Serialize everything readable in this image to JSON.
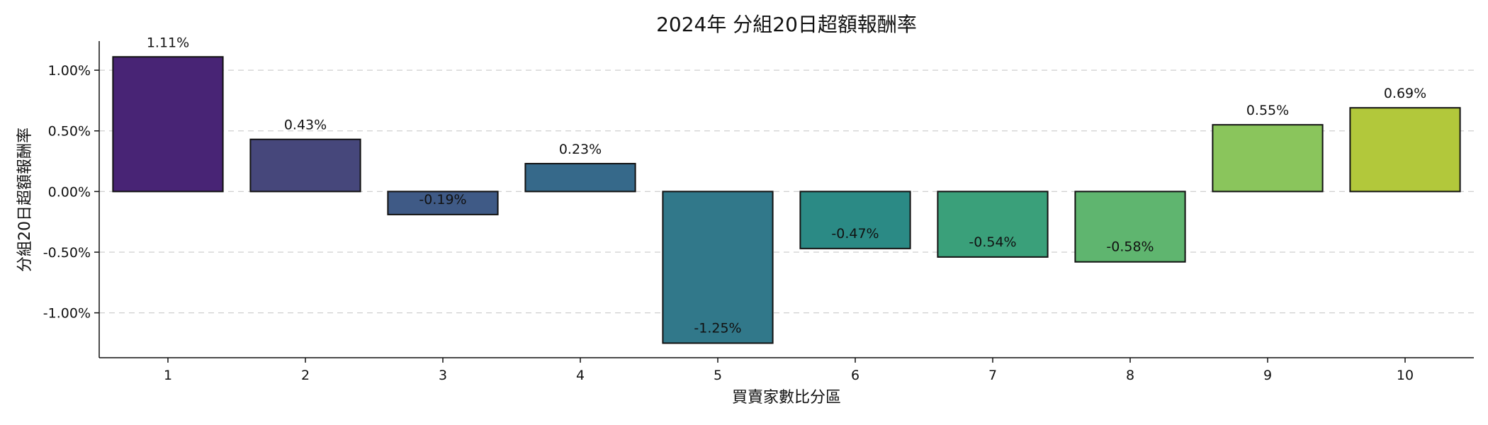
{
  "chart_data": {
    "type": "bar",
    "title": "2024年 分組20日超額報酬率",
    "xlabel": "買賣家數比分區",
    "ylabel": "分組20日超額報酬率",
    "categories": [
      "1",
      "2",
      "3",
      "4",
      "5",
      "6",
      "7",
      "8",
      "9",
      "10"
    ],
    "values": [
      1.11,
      0.43,
      -0.19,
      0.23,
      -1.25,
      -0.47,
      -0.54,
      -0.58,
      0.55,
      0.69
    ],
    "value_labels": [
      "1.11%",
      "0.43%",
      "-0.19%",
      "0.23%",
      "-1.25%",
      "-0.47%",
      "-0.54%",
      "-0.58%",
      "0.55%",
      "0.69%"
    ],
    "bar_colors": [
      "#482475",
      "#46477b",
      "#3f5a86",
      "#36698a",
      "#31788a",
      "#2b8a85",
      "#3aa07a",
      "#5fb56f",
      "#8ac55c",
      "#b2c83b"
    ],
    "ylim": [
      -1.37,
      1.24
    ],
    "yticks": [
      -1.0,
      -0.5,
      0.0,
      0.5,
      1.0
    ],
    "ytick_labels": [
      "-1.00%",
      "-0.50%",
      "0.00%",
      "0.50%",
      "1.00%"
    ],
    "grid": "y-dashed",
    "legend": "none"
  }
}
